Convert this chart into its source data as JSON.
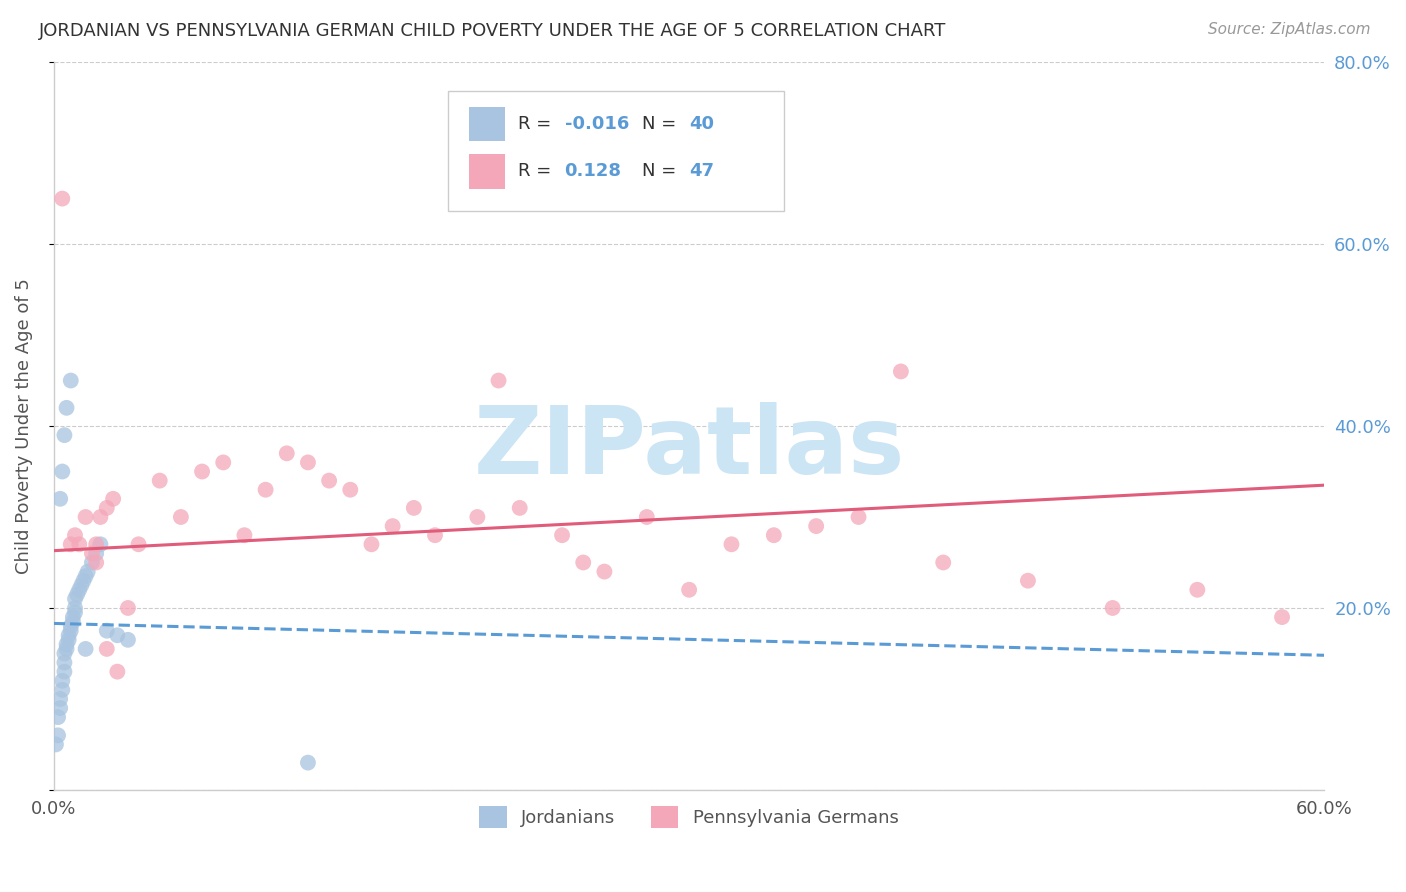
{
  "title": "JORDANIAN VS PENNSYLVANIA GERMAN CHILD POVERTY UNDER THE AGE OF 5 CORRELATION CHART",
  "source": "Source: ZipAtlas.com",
  "ylabel": "Child Poverty Under the Age of 5",
  "xlim": [
    0,
    0.6
  ],
  "ylim": [
    0,
    0.8
  ],
  "blue_color": "#a8c4e0",
  "blue_line_color": "#5b9bd5",
  "pink_color": "#f4a7b9",
  "pink_line_color": "#e05c7a",
  "watermark_text": "ZIPatlas",
  "watermark_color": "#cce5f5",
  "background_color": "#ffffff",
  "grid_color": "#cccccc",
  "blue_scatter_x": [
    0.001,
    0.002,
    0.002,
    0.003,
    0.003,
    0.004,
    0.004,
    0.005,
    0.005,
    0.005,
    0.006,
    0.006,
    0.007,
    0.007,
    0.008,
    0.008,
    0.009,
    0.009,
    0.01,
    0.01,
    0.01,
    0.011,
    0.012,
    0.013,
    0.014,
    0.015,
    0.016,
    0.018,
    0.02,
    0.022,
    0.003,
    0.004,
    0.005,
    0.006,
    0.008,
    0.025,
    0.03,
    0.035,
    0.12,
    0.015
  ],
  "blue_scatter_y": [
    0.05,
    0.06,
    0.08,
    0.09,
    0.1,
    0.11,
    0.12,
    0.13,
    0.14,
    0.15,
    0.155,
    0.16,
    0.165,
    0.17,
    0.175,
    0.18,
    0.185,
    0.19,
    0.195,
    0.2,
    0.21,
    0.215,
    0.22,
    0.225,
    0.23,
    0.235,
    0.24,
    0.25,
    0.26,
    0.27,
    0.32,
    0.35,
    0.39,
    0.42,
    0.45,
    0.175,
    0.17,
    0.165,
    0.03,
    0.155
  ],
  "pink_scatter_x": [
    0.004,
    0.008,
    0.01,
    0.012,
    0.015,
    0.018,
    0.02,
    0.022,
    0.025,
    0.028,
    0.03,
    0.035,
    0.04,
    0.05,
    0.06,
    0.07,
    0.08,
    0.09,
    0.1,
    0.11,
    0.12,
    0.13,
    0.14,
    0.15,
    0.16,
    0.17,
    0.18,
    0.2,
    0.21,
    0.22,
    0.24,
    0.25,
    0.26,
    0.28,
    0.3,
    0.32,
    0.34,
    0.36,
    0.38,
    0.4,
    0.42,
    0.46,
    0.5,
    0.54,
    0.58,
    0.02,
    0.025
  ],
  "pink_scatter_y": [
    0.65,
    0.27,
    0.28,
    0.27,
    0.3,
    0.26,
    0.25,
    0.3,
    0.31,
    0.32,
    0.13,
    0.2,
    0.27,
    0.34,
    0.3,
    0.35,
    0.36,
    0.28,
    0.33,
    0.37,
    0.36,
    0.34,
    0.33,
    0.27,
    0.29,
    0.31,
    0.28,
    0.3,
    0.45,
    0.31,
    0.28,
    0.25,
    0.24,
    0.3,
    0.22,
    0.27,
    0.28,
    0.29,
    0.3,
    0.46,
    0.25,
    0.23,
    0.2,
    0.22,
    0.19,
    0.27,
    0.155
  ],
  "blue_line_x0": 0.0,
  "blue_line_x1": 0.6,
  "blue_line_y0": 0.183,
  "blue_line_y1": 0.148,
  "pink_line_x0": 0.0,
  "pink_line_x1": 0.6,
  "pink_line_y0": 0.263,
  "pink_line_y1": 0.335
}
